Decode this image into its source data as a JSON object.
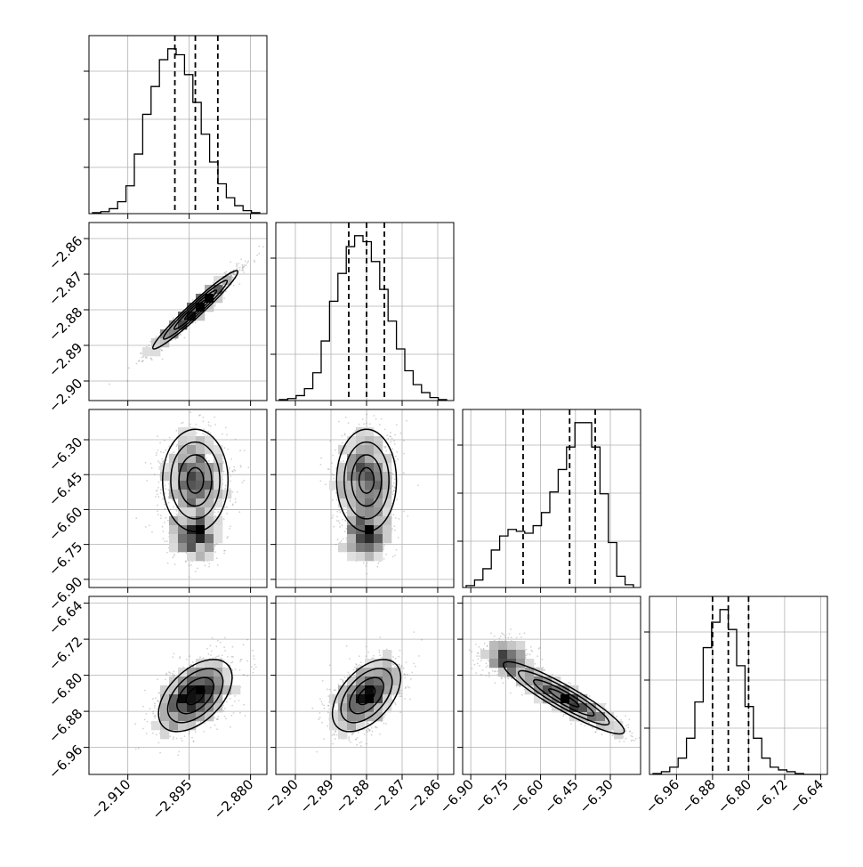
{
  "figure": {
    "kind": "corner-plot",
    "dimensions": 4
  },
  "chart_data": {
    "type": "corner",
    "axis_ticks": [
      [
        "−2.910",
        "−2.895",
        "−2.880"
      ],
      [
        "−2.90",
        "−2.89",
        "−2.88",
        "−2.87",
        "−2.86"
      ],
      [
        "−6.90",
        "−6.75",
        "−6.60",
        "−6.45",
        "−6.30"
      ],
      [
        "−6.96",
        "−6.88",
        "−6.80",
        "−6.72",
        "−6.64"
      ]
    ],
    "axis_tick_values": [
      [
        -2.91,
        -2.895,
        -2.88
      ],
      [
        -2.9,
        -2.89,
        -2.88,
        -2.87,
        -2.86
      ],
      [
        -6.9,
        -6.75,
        -6.6,
        -6.45,
        -6.3
      ],
      [
        -6.96,
        -6.88,
        -6.8,
        -6.72,
        -6.64
      ]
    ],
    "axis_ranges": [
      [
        -2.9195,
        -2.876
      ],
      [
        -2.9055,
        -2.8555
      ],
      [
        -6.935,
        -6.17
      ],
      [
        -7.02,
        -6.625
      ]
    ],
    "y_tick_labels_left": [
      {
        "row": 1,
        "labels": [
          "−2.86",
          "−2.87",
          "−2.88",
          "−2.89",
          "−2.90"
        ]
      },
      {
        "row": 2,
        "labels": [
          "−6.30",
          "−6.45",
          "−6.60",
          "−6.75",
          "−6.90"
        ]
      },
      {
        "row": 3,
        "labels": [
          "−6.64",
          "−6.72",
          "−6.80",
          "−6.88",
          "−6.96"
        ]
      }
    ],
    "diagonal_histograms": [
      {
        "param": 0,
        "bins": 20,
        "counts": [
          1,
          2,
          5,
          12,
          28,
          60,
          100,
          128,
          155,
          166,
          160,
          140,
          112,
          80,
          52,
          30,
          16,
          8,
          3,
          1
        ],
        "quantiles": [
          -2.8985,
          -2.8935,
          -2.888
        ]
      },
      {
        "param": 1,
        "bins": 20,
        "counts": [
          1,
          2,
          5,
          12,
          28,
          60,
          100,
          128,
          155,
          166,
          160,
          140,
          112,
          80,
          52,
          30,
          16,
          8,
          3,
          1
        ],
        "quantiles": [
          -2.885,
          -2.88,
          -2.875
        ]
      },
      {
        "param": 2,
        "bins": 20,
        "counts": [
          2,
          8,
          20,
          40,
          55,
          62,
          60,
          58,
          66,
          80,
          102,
          126,
          150,
          176,
          176,
          150,
          100,
          48,
          12,
          3
        ],
        "quantiles": [
          -6.675,
          -6.475,
          -6.365
        ]
      },
      {
        "param": 3,
        "bins": 20,
        "counts": [
          1,
          3,
          8,
          18,
          40,
          80,
          140,
          168,
          182,
          160,
          120,
          75,
          40,
          18,
          8,
          5,
          3,
          1,
          0,
          0
        ],
        "quantiles": [
          -6.88,
          -6.845,
          -6.8
        ]
      }
    ],
    "joint_distributions": [
      {
        "x_param": 0,
        "y_param": 1,
        "mean": [
          -2.8935,
          -2.88
        ],
        "sd": [
          0.0052,
          0.0055
        ],
        "corr": 0.97
      },
      {
        "x_param": 0,
        "y_param": 2,
        "mean": [
          -2.8935,
          -6.475
        ],
        "sd": [
          0.004,
          0.11
        ],
        "corr": 0.0
      },
      {
        "x_param": 1,
        "y_param": 2,
        "mean": [
          -2.88,
          -6.475
        ],
        "sd": [
          0.0042,
          0.11
        ],
        "corr": 0.0
      },
      {
        "x_param": 0,
        "y_param": 3,
        "mean": [
          -2.8935,
          -6.845
        ],
        "sd": [
          0.0045,
          0.04
        ],
        "corr": 0.5
      },
      {
        "x_param": 1,
        "y_param": 3,
        "mean": [
          -2.88,
          -6.845
        ],
        "sd": [
          0.0048,
          0.04
        ],
        "corr": 0.5
      },
      {
        "x_param": 2,
        "y_param": 3,
        "mean": [
          -6.5,
          -6.85
        ],
        "sd": [
          0.13,
          0.04
        ],
        "corr": -0.92
      }
    ],
    "grid": true,
    "colors": {
      "lines": "#000000",
      "samples": "#7f7f7f",
      "grid": "#b0b0b0",
      "background": "#ffffff"
    }
  }
}
